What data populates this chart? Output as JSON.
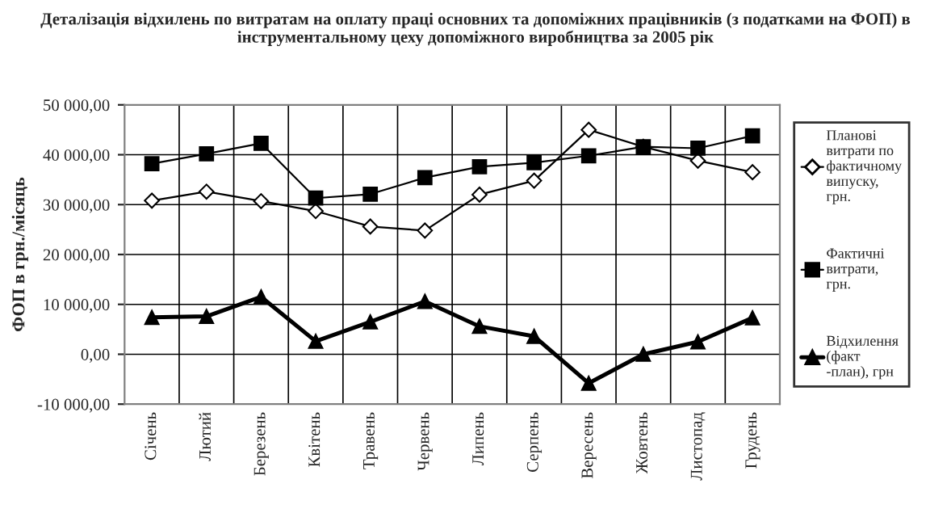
{
  "chart_data": {
    "type": "line",
    "title": "Деталізація відхилень по витратам на оплату праці основних та допоміжних працівників (з податками на ФОП) в інструментальному цеху допоміжного виробництва за 2005 рік",
    "ylabel": "ФОП в грн./місяць",
    "categories": [
      "Січень",
      "Лютий",
      "Березень",
      "Квітень",
      "Травень",
      "Червень",
      "Липень",
      "Серпень",
      "Вересень",
      "Жовтень",
      "Листопад",
      "Грудень"
    ],
    "series": [
      {
        "name": "Планові витрати по фактичному випуску, грн.",
        "color": "#000000",
        "marker": "diamond",
        "values": [
          30800,
          32600,
          30700,
          28700,
          25600,
          24800,
          32000,
          34800,
          45000,
          41600,
          38800,
          36500
        ]
      },
      {
        "name": "Фактичні витрати, грн.",
        "color": "#000000",
        "marker": "square",
        "values": [
          38200,
          40200,
          42300,
          31300,
          32100,
          35400,
          37600,
          38400,
          39800,
          41600,
          41300,
          43800
        ]
      },
      {
        "name": "Відхилення (факт -план), грн",
        "color": "#000000",
        "marker": "triangle",
        "values": [
          7400,
          7600,
          11500,
          2600,
          6500,
          10600,
          5600,
          3600,
          -5800,
          0,
          2500,
          7300
        ]
      }
    ],
    "ylim": [
      -10000,
      50000
    ],
    "yticks": [
      {
        "value": -10000,
        "label": "-10 000,00"
      },
      {
        "value": 0,
        "label": "0,00"
      },
      {
        "value": 10000,
        "label": "10 000,00"
      },
      {
        "value": 20000,
        "label": "20 000,00"
      },
      {
        "value": 30000,
        "label": "30 000,00"
      },
      {
        "value": 40000,
        "label": "40 000,00"
      },
      {
        "value": 50000,
        "label": "50 000,00"
      }
    ],
    "grid": true,
    "legend": "right",
    "line_style": "solid"
  }
}
